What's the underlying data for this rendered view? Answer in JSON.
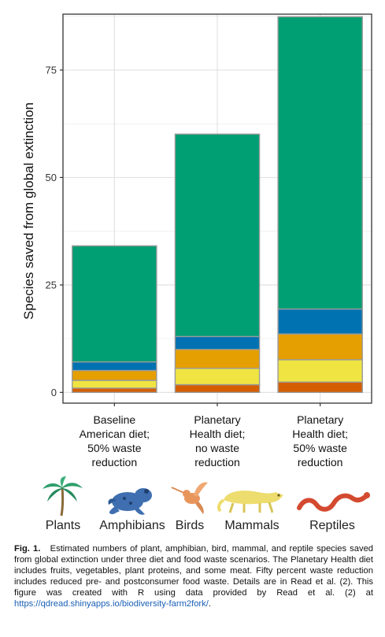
{
  "chart_data": {
    "type": "bar",
    "stacked": true,
    "categories": [
      [
        "Baseline",
        "American diet;",
        "50% waste",
        "reduction"
      ],
      [
        "Planetary",
        "Health diet;",
        "no waste",
        "reduction"
      ],
      [
        "Planetary",
        "Health diet;",
        "50% waste",
        "reduction"
      ]
    ],
    "series": [
      {
        "name": "Reptiles",
        "color": "#d55e00",
        "values": [
          1.0,
          1.8,
          2.4
        ]
      },
      {
        "name": "Mammals",
        "color": "#f0e442",
        "values": [
          1.8,
          3.8,
          5.2
        ]
      },
      {
        "name": "Birds",
        "color": "#e69f00",
        "values": [
          2.3,
          4.4,
          6.0
        ]
      },
      {
        "name": "Amphibians",
        "color": "#0072b2",
        "values": [
          2.0,
          3.0,
          5.8
        ]
      },
      {
        "name": "Plants",
        "color": "#009e73",
        "values": [
          27.0,
          47.1,
          68.0
        ]
      }
    ],
    "xlabel": "",
    "ylabel": "Species saved from global extinction",
    "ylim": [
      -2.5,
      88
    ],
    "yticks": [
      0,
      25,
      50,
      75
    ],
    "grid": true
  },
  "legend": {
    "items": [
      {
        "label": "Plants",
        "icon": "palm-tree-icon"
      },
      {
        "label": "Amphibians",
        "icon": "frog-icon"
      },
      {
        "label": "Birds",
        "icon": "hummingbird-icon"
      },
      {
        "label": "Mammals",
        "icon": "mammal-icon"
      },
      {
        "label": "Reptiles",
        "icon": "snake-icon"
      }
    ]
  },
  "caption": {
    "fig_num": "Fig. 1.",
    "text": "Estimated numbers of plant, amphibian, bird, mammal, and reptile species saved from global extinction under three diet and food waste scenarios. The Planetary Health diet includes fruits, vegetables, plant proteins, and some meat. Fifty percent waste reduction includes reduced pre- and postconsumer food waste. Details are in Read et al. (2). This figure was created with R using data provided by Read et al. (2) at ",
    "link": "https://qdread.shinyapps.io/biodiversity-farm2fork/",
    "end": "."
  }
}
